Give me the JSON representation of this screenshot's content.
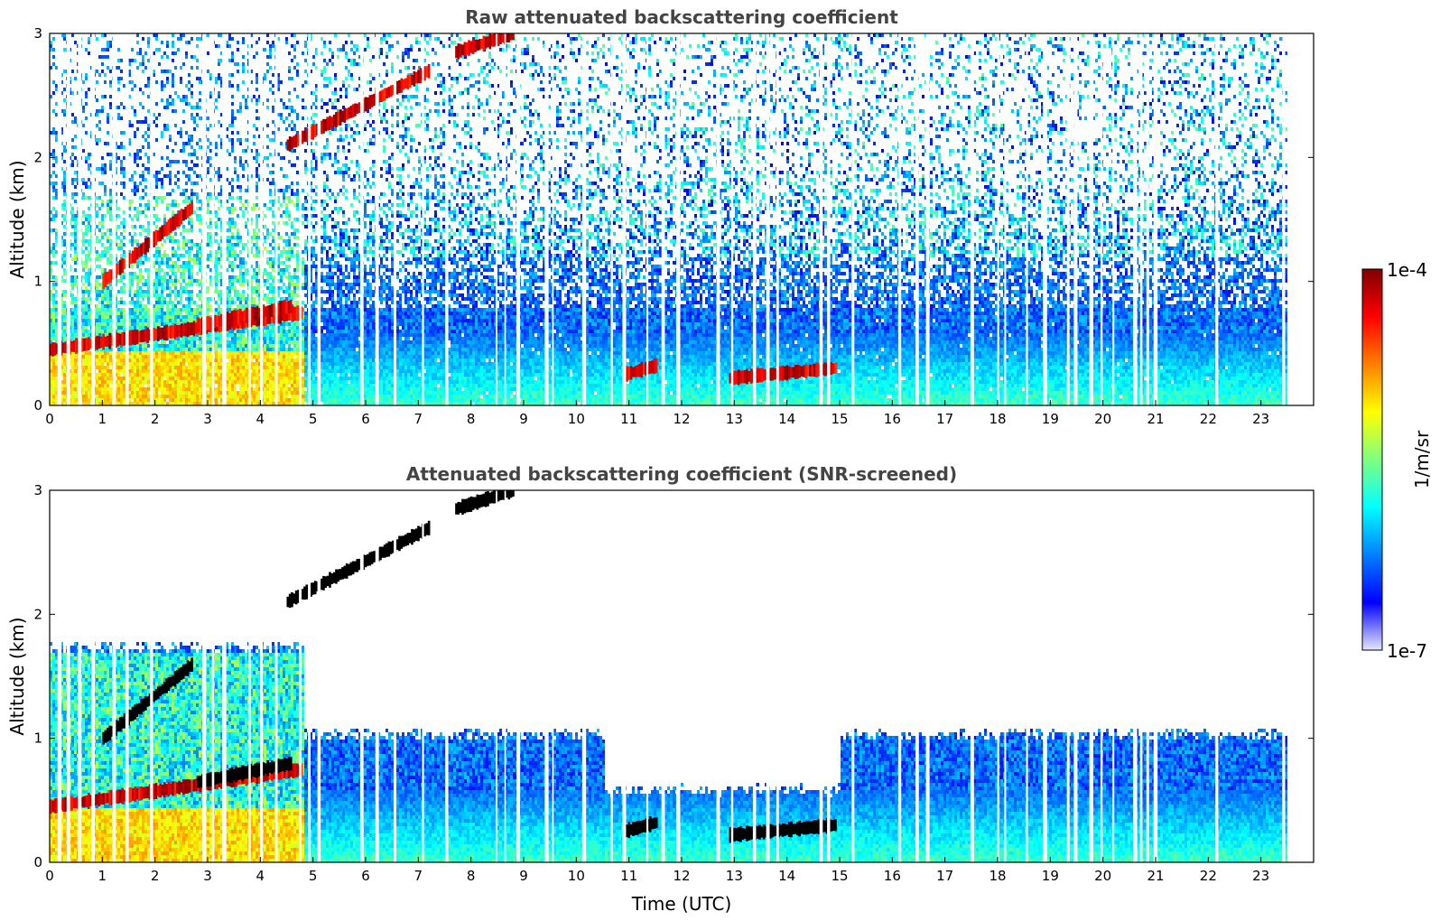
{
  "figure": {
    "colorbar": {
      "label": "1/m/sr",
      "max_label": "1e-4",
      "min_label": "1e-7",
      "scale": "log",
      "colormap": [
        "#e6e6fa",
        "#0000ff",
        "#0080ff",
        "#00ffff",
        "#80ff80",
        "#ffff00",
        "#ff8000",
        "#ff0000",
        "#800000"
      ]
    },
    "xlabel": "Time (UTC)"
  },
  "chart_data": [
    {
      "type": "heatmap",
      "title": "Raw attenuated backscattering coefficient",
      "xlabel": "",
      "ylabel": "Altitude (km)",
      "xlim": [
        0,
        24
      ],
      "ylim": [
        0,
        3
      ],
      "xticks": [
        "0",
        "1",
        "2",
        "3",
        "4",
        "5",
        "6",
        "7",
        "8",
        "9",
        "10",
        "11",
        "12",
        "13",
        "14",
        "15",
        "16",
        "17",
        "18",
        "19",
        "20",
        "21",
        "22",
        "23"
      ],
      "yticks": [
        "0",
        "1",
        "2",
        "3"
      ],
      "features": [
        {
          "feature": "aerosol layer",
          "x": [
            0,
            4.8
          ],
          "y": [
            0.45,
            0.75
          ]
        },
        {
          "feature": "cloud layer",
          "x": [
            1.0,
            2.7
          ],
          "y": [
            1.0,
            1.6
          ]
        },
        {
          "feature": "cloud layer",
          "x": [
            2.8,
            4.6
          ],
          "y": [
            0.65,
            0.8
          ]
        },
        {
          "feature": "cloud layer",
          "x": [
            4.5,
            7.2
          ],
          "y": [
            2.1,
            2.7
          ]
        },
        {
          "feature": "cloud layer",
          "x": [
            7.7,
            8.8
          ],
          "y": [
            2.85,
            3.0
          ]
        },
        {
          "feature": "cloud layer",
          "x": [
            10.9,
            11.5
          ],
          "y": [
            0.25,
            0.32
          ]
        },
        {
          "feature": "cloud layer",
          "x": [
            12.9,
            14.9
          ],
          "y": [
            0.22,
            0.3
          ]
        },
        {
          "feature": "boundary layer",
          "x": [
            5.0,
            23.5
          ],
          "y": [
            0,
            0.6
          ]
        }
      ],
      "snr_screened": false
    },
    {
      "type": "heatmap",
      "title": "Attenuated backscattering coefficient (SNR-screened)",
      "xlabel": "Time (UTC)",
      "ylabel": "Altitude (km)",
      "xlim": [
        0,
        24
      ],
      "ylim": [
        0,
        3
      ],
      "xticks": [
        "0",
        "1",
        "2",
        "3",
        "4",
        "5",
        "6",
        "7",
        "8",
        "9",
        "10",
        "11",
        "12",
        "13",
        "14",
        "15",
        "16",
        "17",
        "18",
        "19",
        "20",
        "21",
        "22",
        "23"
      ],
      "yticks": [
        "0",
        "1",
        "2",
        "3"
      ],
      "features": [
        {
          "feature": "aerosol layer",
          "x": [
            0,
            4.8
          ],
          "y": [
            0.45,
            0.75
          ]
        },
        {
          "feature": "cloud layer",
          "x": [
            1.0,
            2.7
          ],
          "y": [
            1.0,
            1.6
          ]
        },
        {
          "feature": "cloud layer",
          "x": [
            2.8,
            4.6
          ],
          "y": [
            0.65,
            0.8
          ]
        },
        {
          "feature": "cloud layer",
          "x": [
            4.5,
            7.2
          ],
          "y": [
            2.1,
            2.7
          ]
        },
        {
          "feature": "cloud layer",
          "x": [
            7.7,
            8.8
          ],
          "y": [
            2.85,
            3.0
          ]
        },
        {
          "feature": "cloud layer",
          "x": [
            10.9,
            11.5
          ],
          "y": [
            0.25,
            0.32
          ]
        },
        {
          "feature": "cloud layer",
          "x": [
            12.9,
            14.9
          ],
          "y": [
            0.22,
            0.3
          ]
        },
        {
          "feature": "boundary layer",
          "x": [
            5.0,
            23.5
          ],
          "y": [
            0,
            1.0
          ]
        }
      ],
      "snr_screened": true
    }
  ]
}
